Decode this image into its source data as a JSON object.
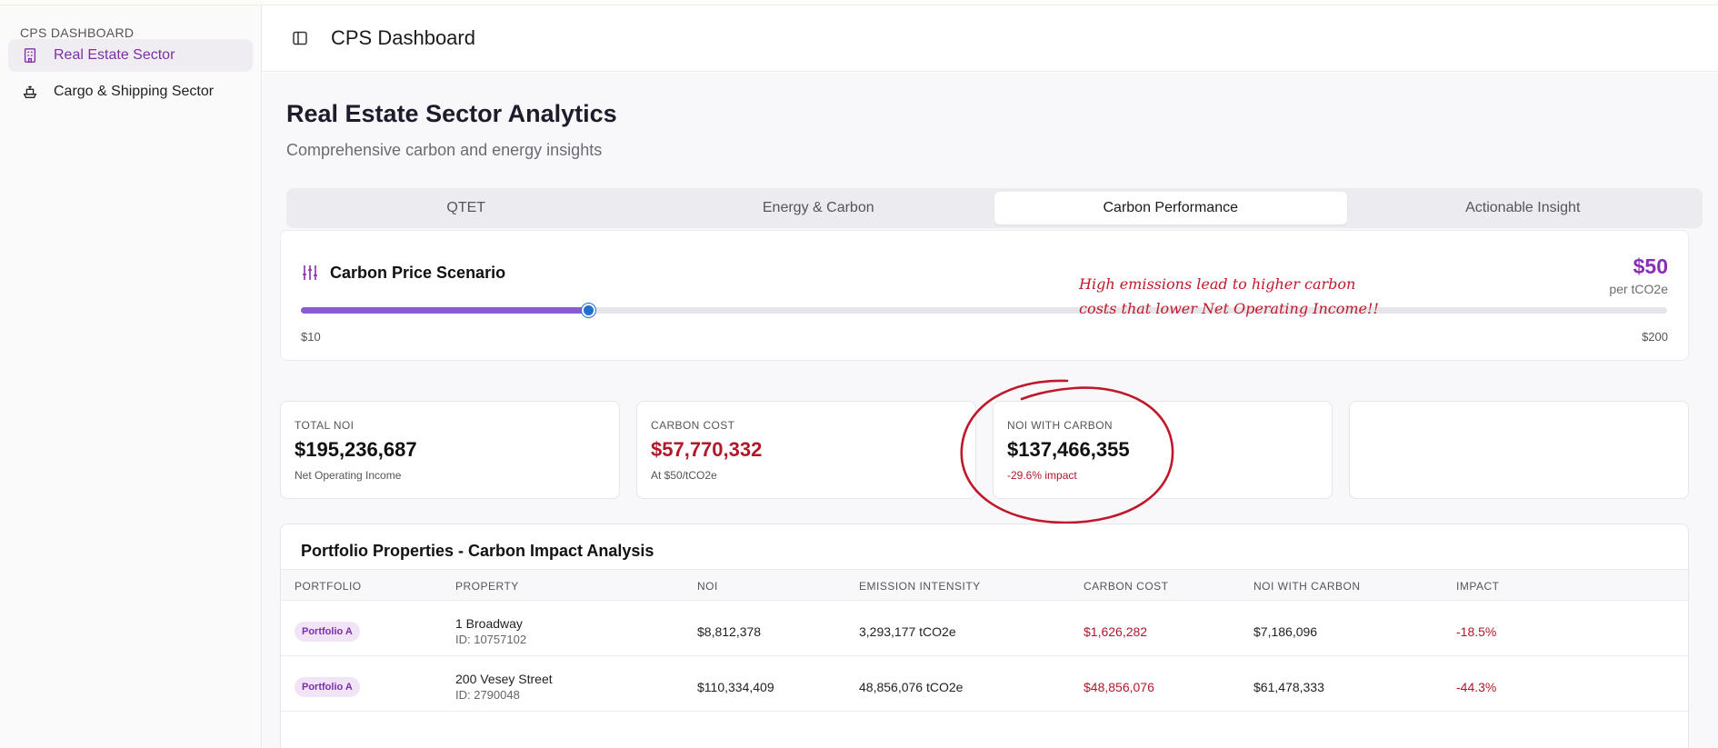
{
  "sidebar": {
    "title": "CPS DASHBOARD",
    "items": [
      {
        "label": "Real Estate Sector",
        "icon": "building-icon",
        "active": true
      },
      {
        "label": "Cargo & Shipping Sector",
        "icon": "ship-icon",
        "active": false
      }
    ]
  },
  "header": {
    "title": "CPS Dashboard",
    "toggle_icon": "sidebar-toggle-icon"
  },
  "page": {
    "title": "Real Estate Sector Analytics",
    "subtitle": "Comprehensive carbon and energy insights"
  },
  "tabs": [
    {
      "label": "QTET",
      "active": false
    },
    {
      "label": "Energy & Carbon",
      "active": false
    },
    {
      "label": "Carbon Performance",
      "active": true
    },
    {
      "label": "Actionable Insight",
      "active": false
    }
  ],
  "carbon_price": {
    "title": "Carbon Price Scenario",
    "icon": "sliders-icon",
    "value_label": "$50",
    "unit": "per tCO2e",
    "min_label": "$10",
    "max_label": "$200",
    "min": 10,
    "max": 200,
    "value": 50
  },
  "annotation": {
    "line1": "High emissions lead to higher carbon",
    "line2": "costs that lower Net Operating Income!!"
  },
  "metrics": [
    {
      "label": "TOTAL NOI",
      "value": "$195,236,687",
      "sub": "Net Operating Income",
      "value_red": false,
      "sub_red": false
    },
    {
      "label": "CARBON COST",
      "value": "$57,770,332",
      "sub": "At $50/tCO2e",
      "value_red": true,
      "sub_red": false
    },
    {
      "label": "NOI WITH CARBON",
      "value": "$137,466,355",
      "sub": "-29.6% impact",
      "value_red": false,
      "sub_red": true
    },
    {
      "label": "",
      "value": "",
      "sub": "",
      "value_red": false,
      "sub_red": false
    }
  ],
  "table": {
    "title": "Portfolio Properties - Carbon Impact Analysis",
    "columns": [
      "PORTFOLIO",
      "PROPERTY",
      "NOI",
      "EMISSION INTENSITY",
      "CARBON COST",
      "NOI WITH CARBON",
      "IMPACT"
    ],
    "rows": [
      {
        "portfolio": "Portfolio A",
        "property": "1 Broadway",
        "id": "ID: 10757102",
        "noi": "$8,812,378",
        "emission": "3,293,177 tCO2e",
        "carbon_cost": "$1,626,282",
        "noi_carbon": "$7,186,096",
        "impact": "-18.5%"
      },
      {
        "portfolio": "Portfolio A",
        "property": "200 Vesey Street",
        "id": "ID: 2790048",
        "noi": "$110,334,409",
        "emission": "48,856,076 tCO2e",
        "carbon_cost": "$48,856,076",
        "noi_carbon": "$61,478,333",
        "impact": "-44.3%"
      }
    ]
  },
  "colors": {
    "accent": "#8a2fb5",
    "negative": "#b1182b",
    "slider_fill": "#8a5bd6",
    "slider_thumb": "#1f6fd1",
    "annotation": "#c0182a"
  }
}
